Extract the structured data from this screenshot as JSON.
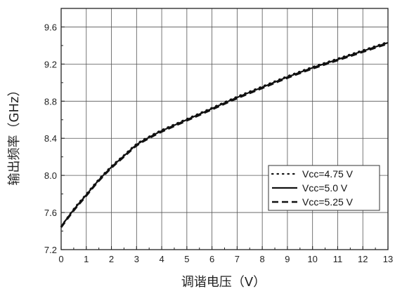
{
  "chart_data": {
    "type": "line",
    "title": "",
    "xlabel": "调谐电压（V）",
    "ylabel": "输出频率（GHz）",
    "xlim": [
      0,
      13
    ],
    "ylim": [
      7.2,
      9.8
    ],
    "x_ticks": [
      0,
      1,
      2,
      3,
      4,
      5,
      6,
      7,
      8,
      9,
      10,
      11,
      12,
      13
    ],
    "y_ticks": [
      7.2,
      7.6,
      8.0,
      8.4,
      8.8,
      9.2,
      9.6
    ],
    "x_tick_labels": [
      "0",
      "1",
      "2",
      "3",
      "4",
      "5",
      "6",
      "7",
      "8",
      "9",
      "10",
      "11",
      "12",
      "13"
    ],
    "y_tick_labels": [
      "7.2",
      "7.6",
      "8.0",
      "8.4",
      "8.8",
      "9.2",
      "9.6"
    ],
    "grid": true,
    "legend_position": "bottom-right",
    "series": [
      {
        "name": "Vcc=4.75 V",
        "style": "dotted",
        "x": [
          0,
          0.5,
          1,
          1.5,
          2,
          2.5,
          3,
          3.5,
          4,
          5,
          6,
          7,
          8,
          9,
          10,
          11,
          12,
          13
        ],
        "y": [
          7.45,
          7.64,
          7.8,
          7.96,
          8.1,
          8.22,
          8.34,
          8.42,
          8.49,
          8.61,
          8.73,
          8.85,
          8.96,
          9.07,
          9.17,
          9.26,
          9.35,
          9.44
        ]
      },
      {
        "name": "Vcc=5.0 V",
        "style": "solid",
        "x": [
          0,
          0.5,
          1,
          1.5,
          2,
          2.5,
          3,
          3.5,
          4,
          5,
          6,
          7,
          8,
          9,
          10,
          11,
          12,
          13
        ],
        "y": [
          7.45,
          7.63,
          7.79,
          7.95,
          8.09,
          8.21,
          8.33,
          8.41,
          8.48,
          8.6,
          8.72,
          8.84,
          8.95,
          9.06,
          9.16,
          9.25,
          9.34,
          9.43
        ]
      },
      {
        "name": "Vcc=5.25 V",
        "style": "dashed",
        "x": [
          0,
          0.5,
          1,
          1.5,
          2,
          2.5,
          3,
          3.5,
          4,
          5,
          6,
          7,
          8,
          9,
          10,
          11,
          12,
          13
        ],
        "y": [
          7.44,
          7.62,
          7.78,
          7.94,
          8.08,
          8.2,
          8.32,
          8.4,
          8.47,
          8.59,
          8.71,
          8.83,
          8.94,
          9.05,
          9.15,
          9.24,
          9.33,
          9.42
        ]
      }
    ]
  }
}
